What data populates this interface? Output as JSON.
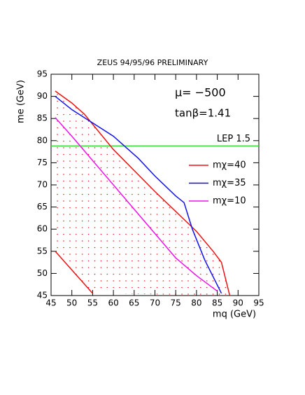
{
  "chart_data": {
    "type": "line",
    "title": "ZEUS 94/95/96 PRELIMINARY",
    "x_label": "mq (GeV)",
    "y_label": "me (GeV)",
    "annotations": [
      "μ= −500",
      "tanβ=1.41"
    ],
    "reference_line": {
      "label": "LEP 1.5",
      "value": 78.8,
      "color": "#33dd33"
    },
    "xlim": [
      45,
      95
    ],
    "ylim": [
      45,
      95
    ],
    "xticks": [
      45,
      50,
      55,
      60,
      65,
      70,
      75,
      80,
      85,
      90,
      95
    ],
    "yticks": [
      45,
      50,
      55,
      60,
      65,
      70,
      75,
      80,
      85,
      90,
      95
    ],
    "series": [
      {
        "name": "mχ=40",
        "color": "#ee1111",
        "x": [
          46,
          50,
          53,
          60,
          70,
          80,
          84,
          86,
          88,
          null,
          46,
          55
        ],
        "values": [
          91.2,
          88.5,
          86,
          78,
          68.5,
          59.5,
          55,
          52.5,
          45,
          null,
          55,
          45.5
        ]
      },
      {
        "name": "mχ=35",
        "color": "#1111ee",
        "x": [
          46,
          50,
          55,
          60,
          63,
          66,
          70,
          75,
          77,
          79,
          82,
          86
        ],
        "values": [
          90,
          87,
          84,
          81,
          78.5,
          76,
          72,
          67.5,
          66,
          60,
          53,
          45.5
        ]
      },
      {
        "name": "mχ=10",
        "color": "#ee11ee",
        "x": [
          46,
          50,
          55,
          60,
          65,
          70,
          75,
          80,
          85
        ],
        "values": [
          85.2,
          81,
          75.5,
          70,
          64.5,
          59,
          53.5,
          49.5,
          46
        ]
      }
    ]
  }
}
